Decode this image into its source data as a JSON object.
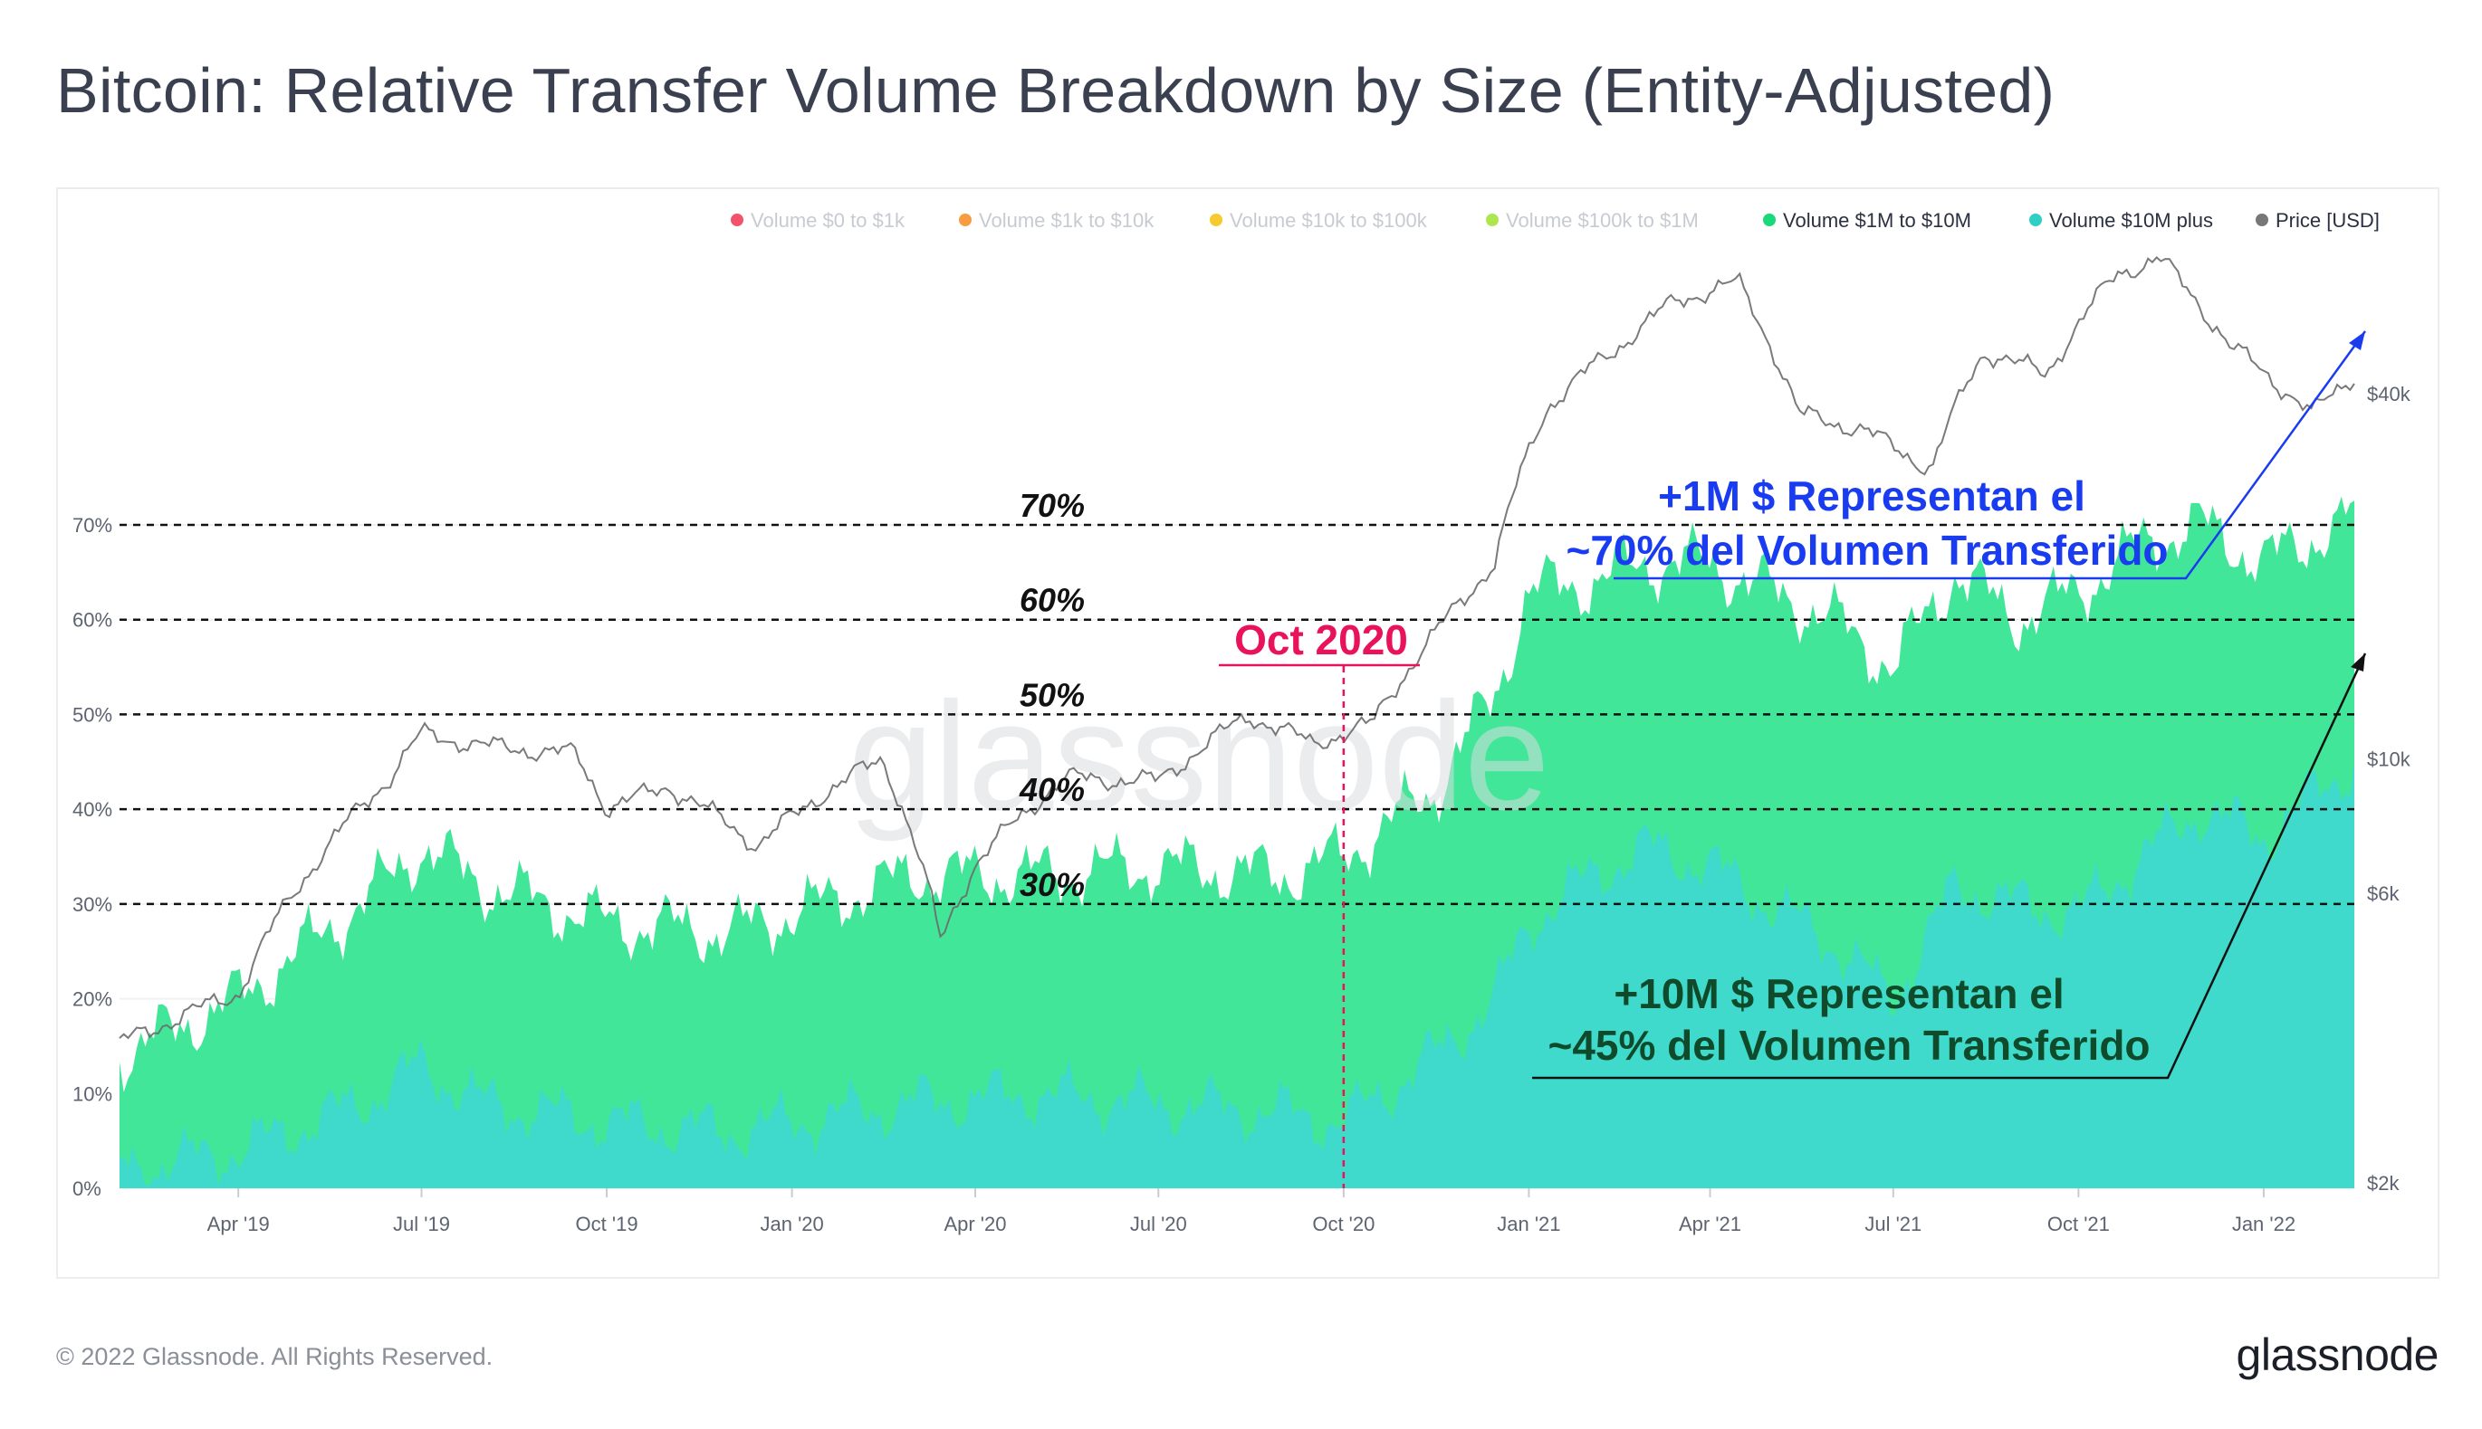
{
  "title": "Bitcoin: Relative Transfer Volume Breakdown by Size (Entity-Adjusted)",
  "footer": {
    "copyright": "© 2022 Glassnode. All Rights Reserved.",
    "logo": "glassnode"
  },
  "watermark": "glassnode",
  "colors": {
    "green": "#2de38d",
    "cyan": "#3fd9cf",
    "price": "#8c8c8c",
    "blue": "#1a3cf0",
    "dark_green": "#0f4a2a",
    "magenta": "#e8135a",
    "gridline": "#f0f1f3"
  },
  "chart_data": {
    "type": "area",
    "x_ticks": [
      "Apr '19",
      "Jul '19",
      "Oct '19",
      "Jan '20",
      "Apr '20",
      "Jul '20",
      "Oct '20",
      "Jan '21",
      "Apr '21",
      "Jul '21",
      "Oct '21",
      "Jan '22"
    ],
    "x_start": "2019-02-01",
    "x_end": "2022-02-15",
    "y_left_ticks": [
      "0%",
      "10%",
      "20%",
      "30%",
      "40%",
      "50%",
      "60%",
      "70%"
    ],
    "y_left_range": [
      0,
      70
    ],
    "y_right_ticks": [
      "$2k",
      "$6k",
      "$10k",
      "$40k"
    ],
    "y_right_scale": "log",
    "legend": {
      "placement": "top-right",
      "items": [
        {
          "label": "Volume $0 to $1k",
          "color": "#f2405a",
          "active": false
        },
        {
          "label": "Volume $1k to $10k",
          "color": "#f6922c",
          "active": false
        },
        {
          "label": "Volume $10k to $100k",
          "color": "#f5c518",
          "active": false
        },
        {
          "label": "Volume $100k to $1M",
          "color": "#a5e33b",
          "active": false
        },
        {
          "label": "Volume $1M to $10M",
          "color": "#19d97b",
          "active": true
        },
        {
          "label": "Volume $10M plus",
          "color": "#2ecfc4",
          "active": true
        },
        {
          "label": "Price [USD]",
          "color": "#777777",
          "active": true
        }
      ]
    },
    "series": [
      {
        "name": "Volume $10M plus",
        "x": [
          "2019-02-01",
          "2019-04-01",
          "2019-06-01",
          "2019-07-01",
          "2019-08-01",
          "2019-10-01",
          "2019-12-01",
          "2020-01-01",
          "2020-03-01",
          "2020-05-01",
          "2020-07-01",
          "2020-09-01",
          "2020-10-01",
          "2020-11-15",
          "2020-12-15",
          "2021-01-01",
          "2021-02-01",
          "2021-03-01",
          "2021-04-01",
          "2021-05-01",
          "2021-06-01",
          "2021-07-01",
          "2021-08-01",
          "2021-09-01",
          "2021-10-01",
          "2021-11-01",
          "2021-12-01",
          "2022-01-01",
          "2022-02-15"
        ],
        "values": [
          2,
          4,
          9,
          13,
          9,
          7,
          6,
          7,
          9,
          10,
          9,
          8,
          7,
          14,
          20,
          28,
          33,
          36,
          34,
          30,
          26,
          20,
          32,
          30,
          29,
          35,
          40,
          37,
          45
        ]
      },
      {
        "name": "Volume $1M to $10M",
        "x": [
          "2019-02-01",
          "2019-04-01",
          "2019-06-01",
          "2019-07-01",
          "2019-08-01",
          "2019-10-01",
          "2019-12-01",
          "2020-01-01",
          "2020-03-01",
          "2020-05-01",
          "2020-07-01",
          "2020-09-01",
          "2020-10-01",
          "2020-11-15",
          "2020-12-15",
          "2021-01-01",
          "2021-02-01",
          "2021-03-01",
          "2021-04-01",
          "2021-05-01",
          "2021-06-01",
          "2021-07-01",
          "2021-08-01",
          "2021-09-01",
          "2021-10-01",
          "2021-11-01",
          "2021-12-01",
          "2022-01-01",
          "2022-02-15"
        ],
        "values": [
          14,
          20,
          30,
          36,
          32,
          28,
          27,
          29,
          33,
          33,
          34,
          33,
          35,
          42,
          52,
          63,
          64,
          66,
          66,
          63,
          60,
          55,
          65,
          60,
          63,
          68,
          70,
          66,
          71
        ]
      },
      {
        "name": "Price [USD]",
        "x": [
          "2019-02-01",
          "2019-04-01",
          "2019-06-15",
          "2019-07-01",
          "2019-08-01",
          "2019-09-15",
          "2019-10-01",
          "2019-11-01",
          "2019-12-15",
          "2020-01-15",
          "2020-02-15",
          "2020-03-15",
          "2020-04-01",
          "2020-05-15",
          "2020-07-01",
          "2020-08-15",
          "2020-09-15",
          "2020-10-15",
          "2020-11-15",
          "2020-12-15",
          "2021-01-10",
          "2021-02-15",
          "2021-03-15",
          "2021-04-15",
          "2021-05-15",
          "2021-06-15",
          "2021-07-20",
          "2021-08-15",
          "2021-09-15",
          "2021-10-20",
          "2021-11-10",
          "2021-12-15",
          "2022-01-25",
          "2022-02-15"
        ],
        "values": [
          3400,
          4100,
          9300,
          11000,
          10500,
          10200,
          8300,
          9000,
          7200,
          8700,
          10000,
          5000,
          6700,
          9300,
          9200,
          11800,
          10600,
          11400,
          16000,
          21000,
          38000,
          48000,
          57000,
          61000,
          37000,
          35000,
          30000,
          47000,
          43000,
          63000,
          67000,
          48000,
          37000,
          43000
        ]
      }
    ],
    "reference_lines": [
      "30%",
      "40%",
      "50%",
      "60%",
      "70%"
    ],
    "annotations": {
      "oct2020": "Oct 2020",
      "big_1m": [
        "+1M $ Representan el",
        "~70% del Volumen Transferido"
      ],
      "big_10m": [
        "+10M $ Representan el",
        "~45% del Volumen Transferido"
      ]
    }
  }
}
